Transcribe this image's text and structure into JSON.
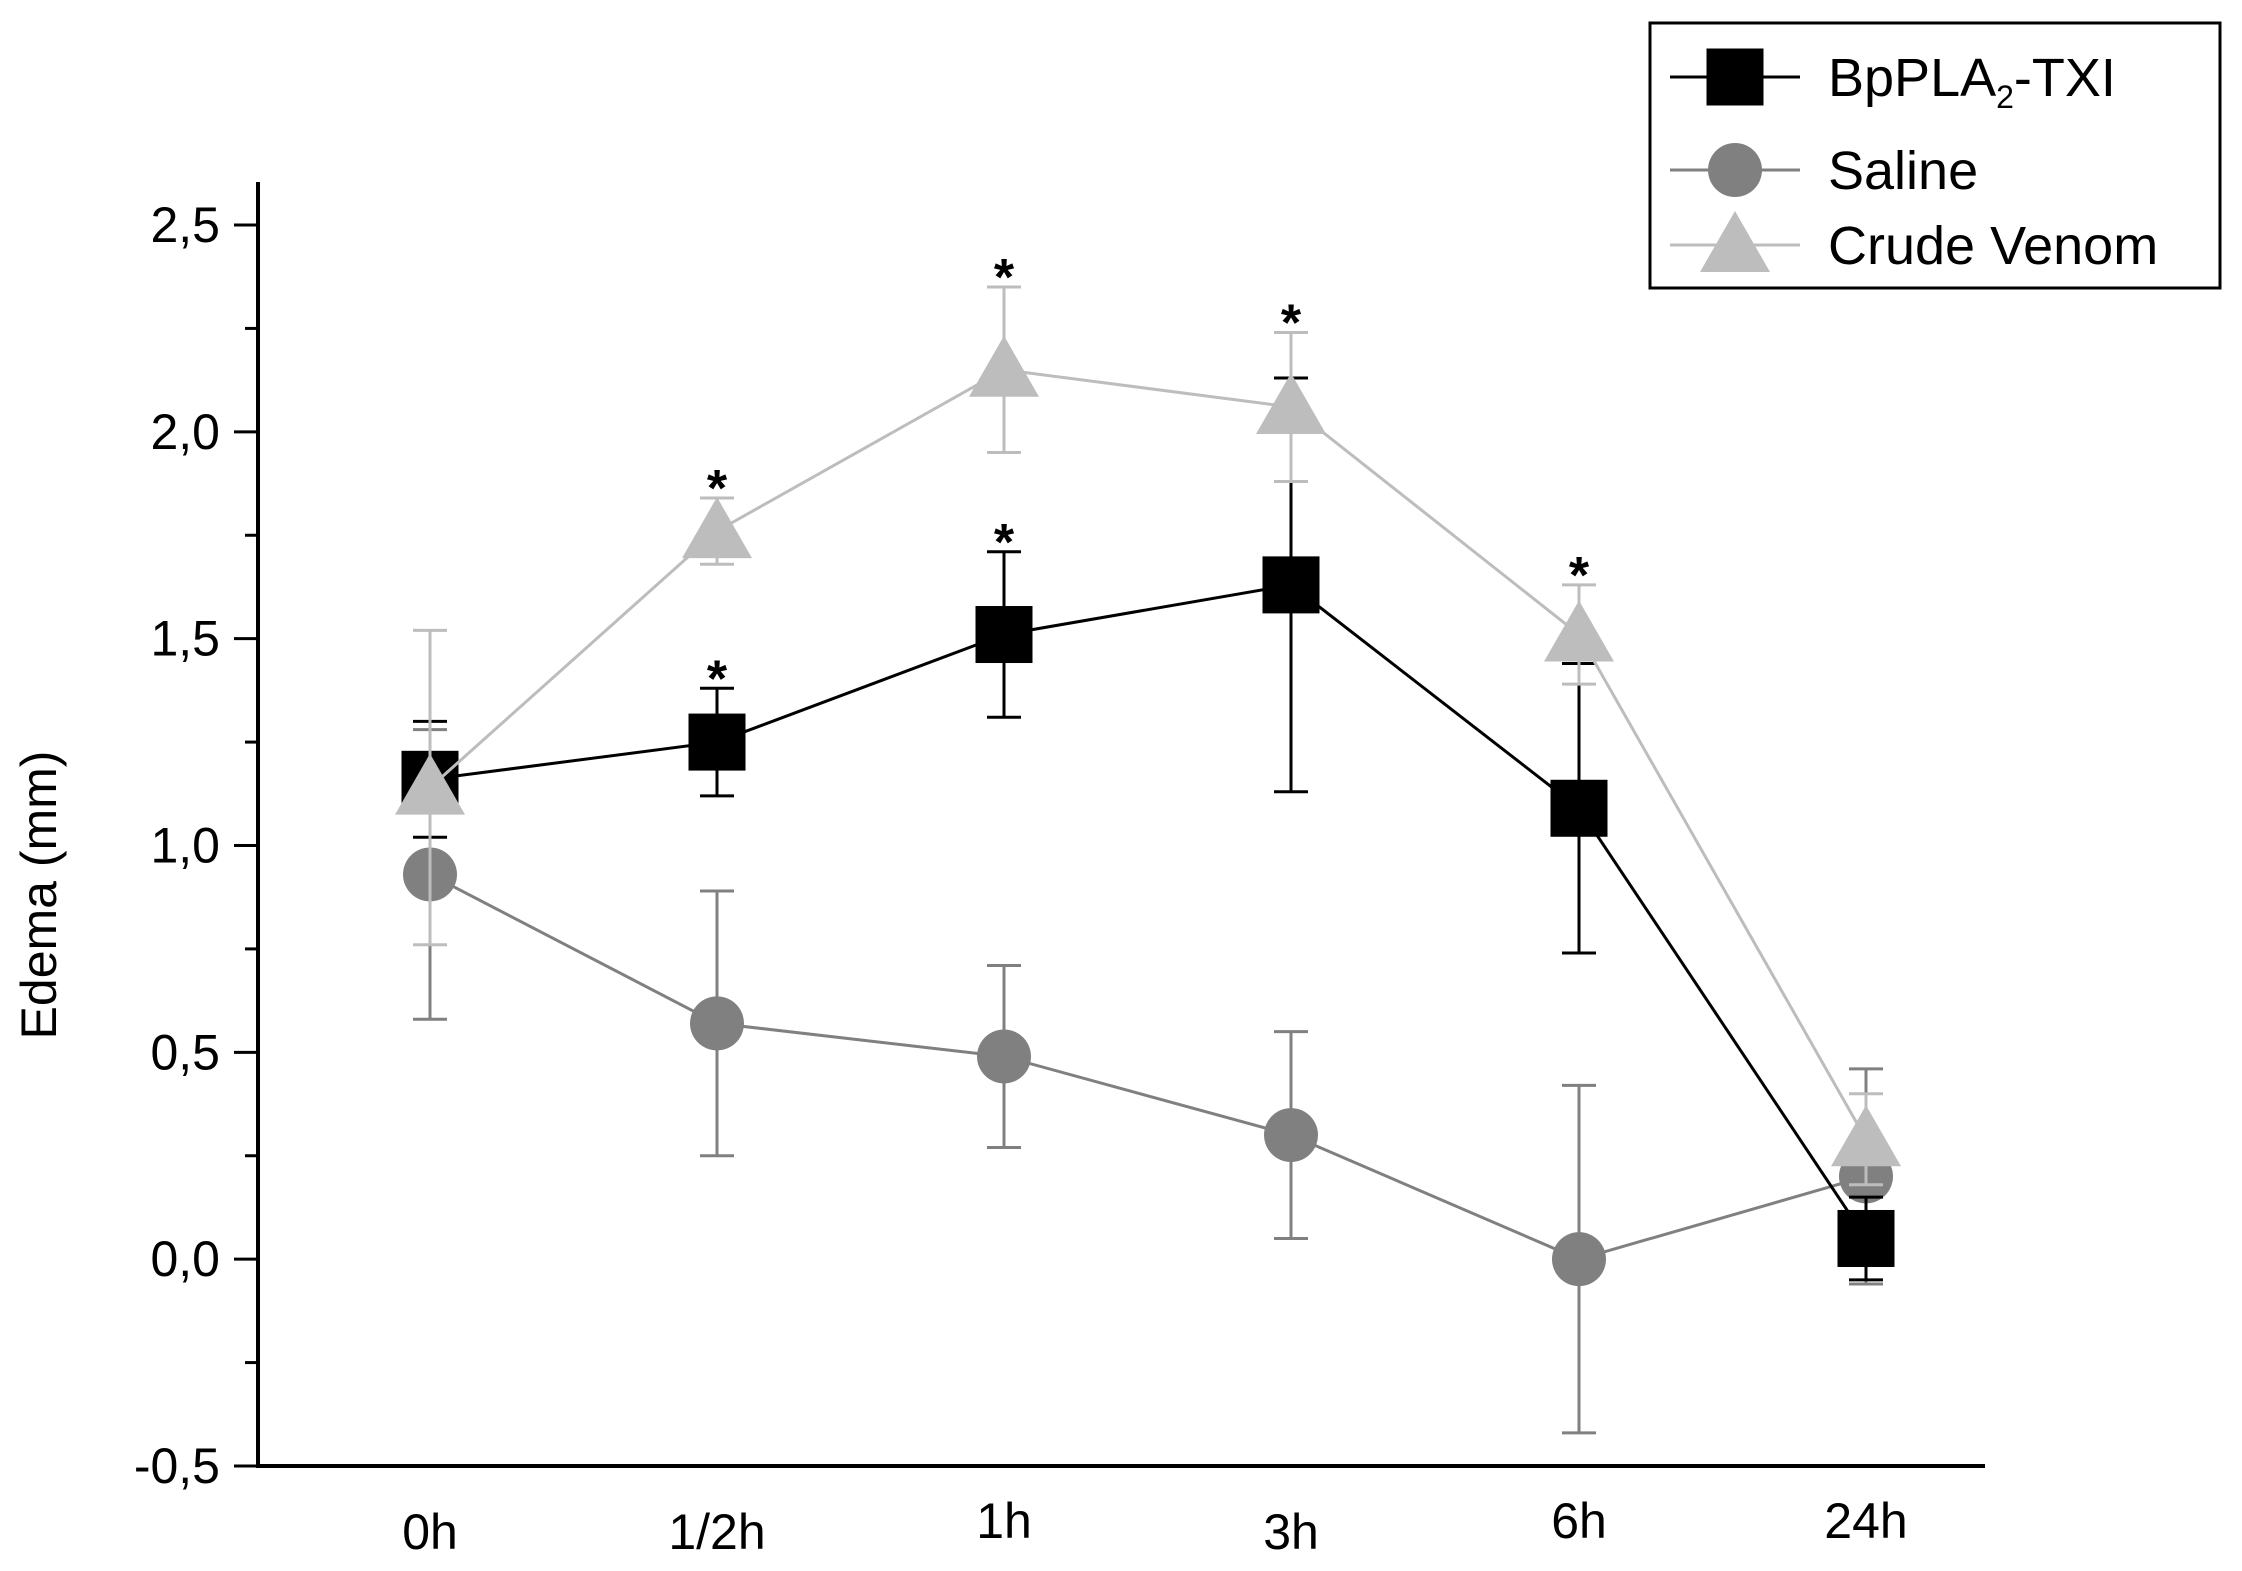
{
  "chart_data": {
    "type": "line",
    "title": "",
    "xlabel": "",
    "ylabel": "Edema (mm)",
    "ylim": [
      -0.5,
      2.6
    ],
    "yticks": [
      -0.5,
      0.0,
      0.5,
      1.0,
      1.5,
      2.0,
      2.5
    ],
    "ytick_labels": [
      "-0,5",
      "0,0",
      "0,5",
      "1,0",
      "1,5",
      "2,0",
      "2,5"
    ],
    "categories": [
      "0h",
      "1/2h",
      "1h",
      "3h",
      "6h",
      "24h"
    ],
    "grid": false,
    "legend_position": "top-right",
    "series": [
      {
        "name": "BpPLA",
        "name_sub": "2",
        "name_suffix": "-TXI",
        "marker": "square",
        "color": "#000000",
        "values": [
          1.16,
          1.25,
          1.51,
          1.63,
          1.09,
          0.05
        ],
        "errors": [
          0.14,
          0.13,
          0.2,
          0.5,
          0.35,
          0.1
        ],
        "significant": [
          false,
          true,
          true,
          false,
          false,
          false
        ]
      },
      {
        "name": "Saline",
        "marker": "circle",
        "color": "#808080",
        "values": [
          0.93,
          0.57,
          0.49,
          0.3,
          0.0,
          0.2
        ],
        "errors": [
          0.35,
          0.32,
          0.22,
          0.25,
          0.42,
          0.26
        ],
        "significant": [
          false,
          false,
          false,
          false,
          false,
          false
        ]
      },
      {
        "name": "Crude Venom",
        "marker": "triangle",
        "color": "#bdbdbd",
        "values": [
          1.14,
          1.76,
          2.15,
          2.06,
          1.51,
          0.29
        ],
        "errors": [
          0.38,
          0.08,
          0.2,
          0.18,
          0.12,
          0.11
        ],
        "significant": [
          false,
          true,
          true,
          true,
          true,
          false
        ]
      }
    ],
    "significance_marker": "*"
  }
}
